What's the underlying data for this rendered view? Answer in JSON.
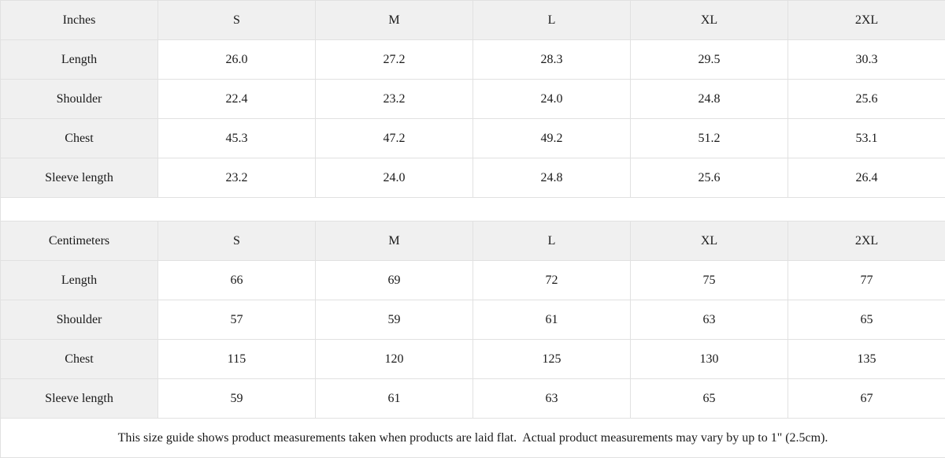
{
  "colors": {
    "header_bg": "#f0f0f0",
    "cell_bg": "#ffffff",
    "border": "#e1e1e1",
    "text": "#1a1a1a"
  },
  "chart_data": [
    {
      "type": "table",
      "title": "Inches",
      "columns": [
        "Inches",
        "S",
        "M",
        "L",
        "XL",
        "2XL"
      ],
      "rows": [
        [
          "Length",
          "26.0",
          "27.2",
          "28.3",
          "29.5",
          "30.3"
        ],
        [
          "Shoulder",
          "22.4",
          "23.2",
          "24.0",
          "24.8",
          "25.6"
        ],
        [
          "Chest",
          "45.3",
          "47.2",
          "49.2",
          "51.2",
          "53.1"
        ],
        [
          "Sleeve length",
          "23.2",
          "24.0",
          "24.8",
          "25.6",
          "26.4"
        ]
      ]
    },
    {
      "type": "table",
      "title": "Centimeters",
      "columns": [
        "Centimeters",
        "S",
        "M",
        "L",
        "XL",
        "2XL"
      ],
      "rows": [
        [
          "Length",
          "66",
          "69",
          "72",
          "75",
          "77"
        ],
        [
          "Shoulder",
          "57",
          "59",
          "61",
          "63",
          "65"
        ],
        [
          "Chest",
          "115",
          "120",
          "125",
          "130",
          "135"
        ],
        [
          "Sleeve length",
          "59",
          "61",
          "63",
          "65",
          "67"
        ]
      ]
    }
  ],
  "footnote": "This size guide shows product measurements taken when products are laid flat.  Actual product measurements may vary by up to 1\" (2.5cm)."
}
